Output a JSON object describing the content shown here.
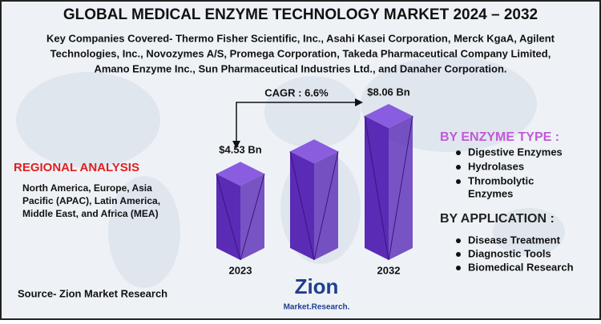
{
  "title": "GLOBAL MEDICAL ENZYME TECHNOLOGY MARKET 2024 – 2032",
  "subtitle": [
    "Key Companies Covered- Thermo Fisher Scientific, Inc., Asahi Kasei Corporation, Merck KgaA, Agilent",
    "Technologies, Inc., Novozymes A/S, Promega Corporation, Takeda Pharmaceutical Company Limited,",
    "Amano Enzyme Inc., Sun Pharmaceutical Industries Ltd., and Danaher Corporation."
  ],
  "chart_data": {
    "type": "bar3d",
    "categories": [
      "2023",
      null,
      "2032"
    ],
    "values": [
      4.53,
      5.9,
      8.06
    ],
    "value_labels": [
      "$4.53 Bn",
      null,
      "$8.06 Bn"
    ],
    "color": "#5a2bb5",
    "annotation": "CAGR : 6.6%"
  },
  "regional": {
    "heading": "REGIONAL ANALYSIS",
    "lines": [
      "North America, Europe, Asia",
      "Pacific (APAC), Latin America,",
      "Middle East, and Africa (MEA)"
    ]
  },
  "enzyme_type": {
    "heading": "BY ENZYME TYPE :",
    "items": [
      "Digestive Enzymes",
      "Hydrolases",
      "Thrombolytic",
      "Enzymes"
    ]
  },
  "application": {
    "heading": "BY APPLICATION :",
    "items": [
      "Disease Treatment",
      "Diagnostic Tools",
      "Biomedical Research"
    ]
  },
  "source": "Source- Zion Market Research",
  "logo": {
    "name": "Zion",
    "tagline": "Market.Research."
  }
}
